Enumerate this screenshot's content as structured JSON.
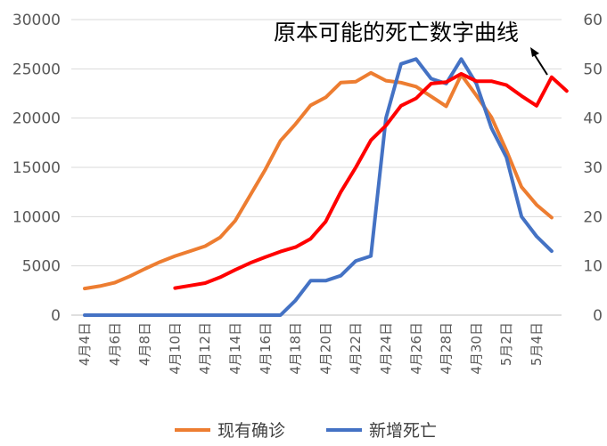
{
  "chart_data": {
    "type": "line",
    "title": "",
    "categories": [
      "4月4日",
      "4月5日",
      "4月6日",
      "4月7日",
      "4月8日",
      "4月9日",
      "4月10日",
      "4月11日",
      "4月12日",
      "4月13日",
      "4月14日",
      "4月15日",
      "4月16日",
      "4月17日",
      "4月18日",
      "4月19日",
      "4月20日",
      "4月21日",
      "4月22日",
      "4月23日",
      "4月24日",
      "4月25日",
      "4月26日",
      "4月27日",
      "4月28日",
      "4月29日",
      "4月30日",
      "5月1日",
      "5月2日",
      "5月3日",
      "5月4日",
      "5月5日",
      "5月6日"
    ],
    "x_tick_labels": [
      "4月4日",
      "4月6日",
      "4月8日",
      "4月10日",
      "4月12日",
      "4月14日",
      "4月16日",
      "4月18日",
      "4月20日",
      "4月22日",
      "4月24日",
      "4月26日",
      "4月28日",
      "4月30日",
      "5月2日",
      "5月4日"
    ],
    "left_axis": {
      "ylim": [
        0,
        30000
      ],
      "ticks": [
        "0",
        "5000",
        "10000",
        "15000",
        "20000",
        "25000",
        "30000"
      ]
    },
    "right_axis": {
      "ylim": [
        0,
        60
      ],
      "ticks": [
        "0",
        "10",
        "20",
        "30",
        "40",
        "50",
        "60"
      ]
    },
    "series": [
      {
        "name": "现有确诊",
        "axis": "left",
        "color": "#ED7D31",
        "values": [
          2700,
          2950,
          3300,
          3950,
          4700,
          5400,
          6000,
          6500,
          7000,
          7900,
          9600,
          12200,
          14800,
          17700,
          19400,
          21300,
          22100,
          23600,
          23700,
          24600,
          23800,
          23600,
          23200,
          22200,
          21200,
          24400,
          22300,
          20100,
          16700,
          13000,
          11200,
          9900,
          null
        ]
      },
      {
        "name": "新增死亡",
        "axis": "right",
        "color": "#4472C4",
        "values": [
          0,
          0,
          0,
          0,
          0,
          0,
          0,
          0,
          0,
          0,
          0,
          0,
          0,
          0,
          3,
          7,
          7,
          8,
          11,
          12,
          40,
          51,
          52,
          48,
          47,
          52,
          47,
          38,
          32,
          20,
          16,
          13,
          null
        ]
      },
      {
        "name": "原本可能的死亡数字曲线",
        "axis": "right",
        "color": "#FF0000",
        "values": [
          null,
          null,
          null,
          null,
          null,
          null,
          5.5,
          6,
          6.5,
          7.7,
          9.2,
          10.6,
          11.8,
          12.9,
          13.8,
          15.5,
          19,
          25,
          30,
          35.5,
          38.5,
          42.5,
          44,
          47,
          47.3,
          49,
          47.5,
          47.5,
          46.7,
          44.5,
          42.5,
          48.3,
          45.5
        ]
      }
    ],
    "legend": [
      "现有确诊",
      "新增死亡"
    ],
    "legend_position": "bottom",
    "annotation": "原本可能的死亡数字曲线",
    "grid": true
  }
}
